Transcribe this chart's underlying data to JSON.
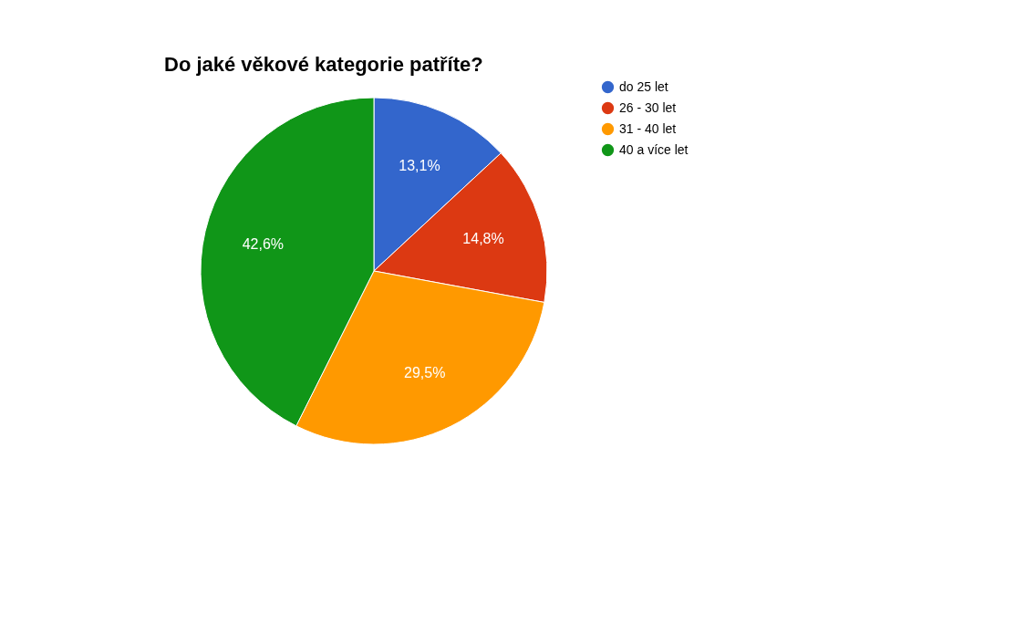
{
  "chart_data": {
    "type": "pie",
    "title": "Do jaké věkové kategorie patříte?",
    "categories": [
      "do 25 let",
      "26 - 30 let",
      "31 - 40 let",
      "40 a více let"
    ],
    "values": [
      13.1,
      14.8,
      29.5,
      42.6
    ],
    "colors": [
      "#3366cc",
      "#dc3912",
      "#ff9900",
      "#109618"
    ],
    "value_labels": [
      "13,1%",
      "14,8%",
      "29,5%",
      "42,6%"
    ],
    "legend": "right"
  }
}
